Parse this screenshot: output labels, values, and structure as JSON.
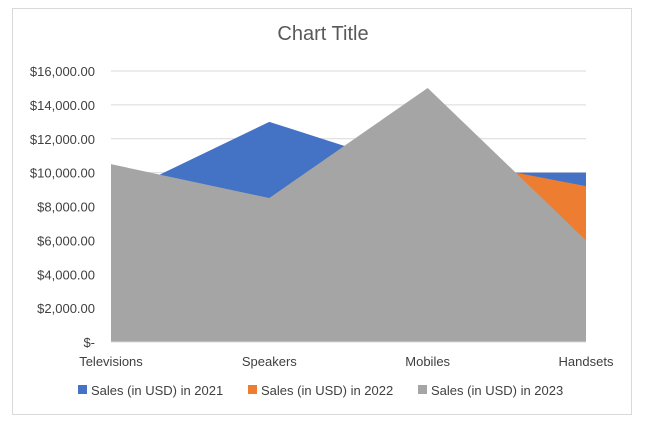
{
  "chart_data": {
    "type": "area",
    "title": "Chart Title",
    "categories": [
      "Televisions",
      "Speakers",
      "Mobiles",
      "Handsets"
    ],
    "series": [
      {
        "name": "Sales (in USD) in 2021",
        "values": [
          8500,
          13000,
          10000,
          10000
        ],
        "color": "#4472c4"
      },
      {
        "name": "Sales (in USD) in 2022",
        "values": [
          9200,
          8000,
          11000,
          9200
        ],
        "color": "#ed7d31"
      },
      {
        "name": "Sales (in USD) in 2023",
        "values": [
          10500,
          8500,
          15000,
          6000
        ],
        "color": "#a5a5a5"
      }
    ],
    "ylim": [
      0,
      16000
    ],
    "y_ticks": [
      {
        "value": 0,
        "label": "$-"
      },
      {
        "value": 2000,
        "label": "$2,000.00"
      },
      {
        "value": 4000,
        "label": "$4,000.00"
      },
      {
        "value": 6000,
        "label": "$6,000.00"
      },
      {
        "value": 8000,
        "label": "$8,000.00"
      },
      {
        "value": 10000,
        "label": "$10,000.00"
      },
      {
        "value": 12000,
        "label": "$12,000.00"
      },
      {
        "value": 14000,
        "label": "$14,000.00"
      },
      {
        "value": 16000,
        "label": "$16,000.00"
      }
    ],
    "grid": true,
    "legend_position": "bottom"
  }
}
